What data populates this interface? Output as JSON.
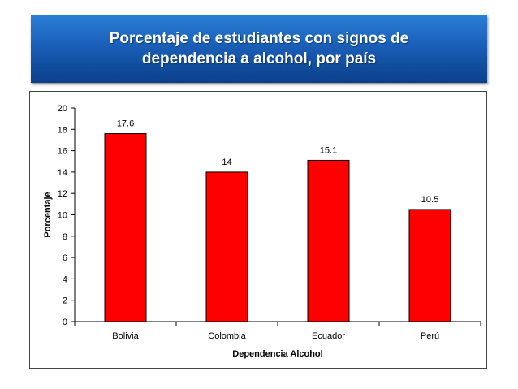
{
  "header": {
    "title": "Porcentaje de estudiantes con signos de dependencia a alcohol, por país"
  },
  "colors": {
    "banner": "#1a5fb8",
    "bar": "#ff0000",
    "bar_edge": "#000000"
  },
  "chart_data": {
    "type": "bar",
    "categories": [
      "Bolivia",
      "Colombia",
      "Ecuador",
      "Perú"
    ],
    "values": [
      17.6,
      14,
      15.1,
      10.5
    ],
    "value_labels": [
      "17.6",
      "14",
      "15.1",
      "10.5"
    ],
    "title": "",
    "xlabel": "Dependencia Alcohol",
    "ylabel": "Porcentaje",
    "ylim": [
      0,
      20
    ],
    "yticks": [
      0,
      2,
      4,
      6,
      8,
      10,
      12,
      14,
      16,
      18,
      20
    ],
    "ytick_labels": [
      "0",
      "2",
      "4",
      "6",
      "8",
      "10",
      "12",
      "14",
      "16",
      "18",
      "20"
    ],
    "grid": false,
    "legend": "none"
  }
}
